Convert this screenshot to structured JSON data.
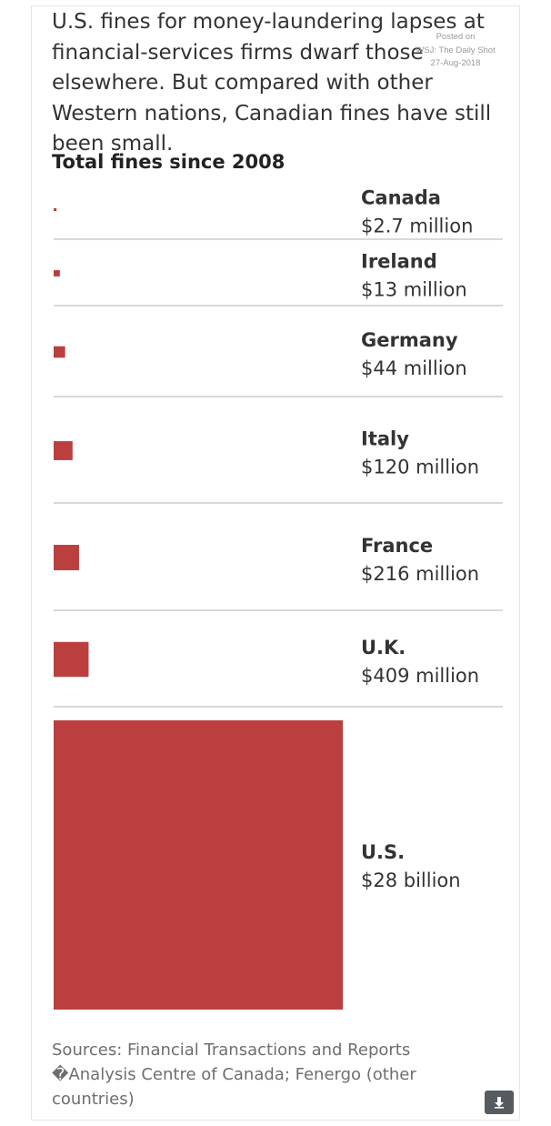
{
  "headline": "U.S. fines for money-laundering lapses at financial-services firms dwarf those elsewhere. But compared with other Western nations, Canadian fines have still been small.",
  "watermark": {
    "line1": "Posted on",
    "line2": "WSJ: The Daily Shot",
    "line3": "27-Aug-2018"
  },
  "sources": "Sources: Financial Transactions and Reports �Analysis Centre of Canada; Fenergo (other countries)",
  "colors": {
    "bar": "#bb3f3f",
    "divider": "#d9d9d9",
    "label": "#333333"
  },
  "download_icon": "download-arrow-icon",
  "chart_data": {
    "type": "bar",
    "title": "Total fines since 2008",
    "encoding": "square-area",
    "categories": [
      "Canada",
      "Ireland",
      "Germany",
      "Italy",
      "France",
      "U.K.",
      "U.S."
    ],
    "values": [
      2.7,
      13,
      44,
      120,
      216,
      409,
      28000
    ],
    "value_unit": "million USD",
    "value_labels": [
      "$2.7 million",
      "$13 million",
      "$44 million",
      "$120 million",
      "$216 million",
      "$409 million",
      "$28 billion"
    ]
  }
}
